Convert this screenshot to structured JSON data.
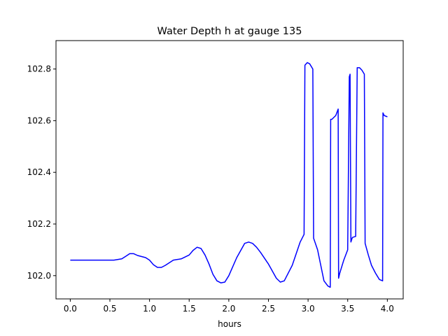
{
  "chart_data": {
    "type": "line",
    "title": "Water Depth h at gauge 135",
    "xlabel": "hours",
    "ylabel": "",
    "xlim": [
      -0.18,
      4.2
    ],
    "ylim": [
      101.91,
      102.91
    ],
    "xticks": [
      0.0,
      0.5,
      1.0,
      1.5,
      2.0,
      2.5,
      3.0,
      3.5,
      4.0
    ],
    "xtick_labels": [
      "0.0",
      "0.5",
      "1.0",
      "1.5",
      "2.0",
      "2.5",
      "3.0",
      "3.5",
      "4.0"
    ],
    "yticks": [
      102.0,
      102.2,
      102.4,
      102.6,
      102.8
    ],
    "ytick_labels": [
      "102.0",
      "102.2",
      "102.4",
      "102.6",
      "102.8"
    ],
    "grid": false,
    "series": [
      {
        "color": "#0000ff",
        "x": [
          0.0,
          0.3,
          0.55,
          0.65,
          0.7,
          0.75,
          0.8,
          0.85,
          0.95,
          1.0,
          1.05,
          1.1,
          1.15,
          1.2,
          1.3,
          1.4,
          1.5,
          1.55,
          1.6,
          1.65,
          1.7,
          1.75,
          1.8,
          1.85,
          1.9,
          1.95,
          2.0,
          2.1,
          2.2,
          2.25,
          2.3,
          2.35,
          2.4,
          2.5,
          2.6,
          2.65,
          2.7,
          2.8,
          2.9,
          2.95,
          2.96,
          2.99,
          3.02,
          3.06,
          3.07,
          3.12,
          3.2,
          3.25,
          3.28,
          3.285,
          3.3,
          3.35,
          3.38,
          3.385,
          3.4,
          3.45,
          3.5,
          3.52,
          3.53,
          3.54,
          3.55,
          3.56,
          3.6,
          3.62,
          3.65,
          3.68,
          3.71,
          3.72,
          3.76,
          3.8,
          3.85,
          3.9,
          3.94,
          3.945,
          3.96,
          4.0
        ],
        "y": [
          102.06,
          102.06,
          102.06,
          102.065,
          102.075,
          102.085,
          102.085,
          102.078,
          102.07,
          102.06,
          102.042,
          102.032,
          102.032,
          102.04,
          102.06,
          102.065,
          102.08,
          102.098,
          102.11,
          102.105,
          102.08,
          102.045,
          102.005,
          101.98,
          101.972,
          101.975,
          102.0,
          102.07,
          102.125,
          102.13,
          102.125,
          102.11,
          102.09,
          102.045,
          101.99,
          101.975,
          101.98,
          102.04,
          102.13,
          102.16,
          102.815,
          102.825,
          102.82,
          102.8,
          102.145,
          102.1,
          101.98,
          101.96,
          101.955,
          102.605,
          102.605,
          102.62,
          102.645,
          101.99,
          102.01,
          102.06,
          102.1,
          102.77,
          102.78,
          102.13,
          102.14,
          102.148,
          102.152,
          102.805,
          102.805,
          102.795,
          102.78,
          102.125,
          102.08,
          102.04,
          102.01,
          101.985,
          101.98,
          102.63,
          102.62,
          102.615
        ]
      }
    ]
  }
}
